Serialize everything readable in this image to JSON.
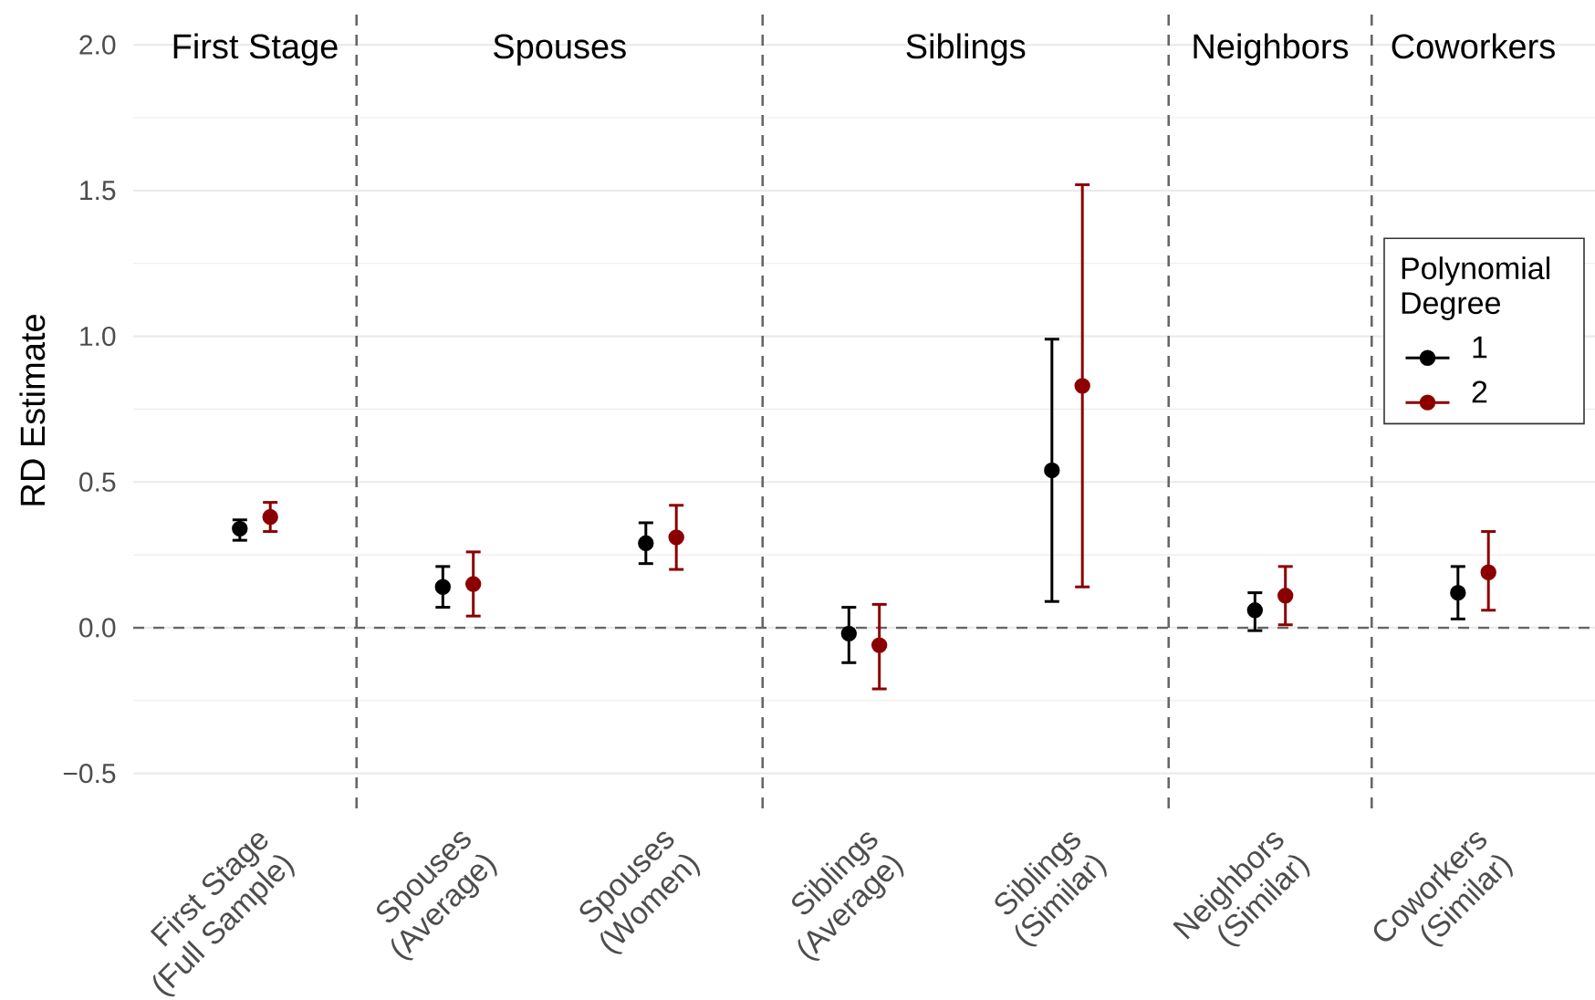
{
  "chart_data": {
    "type": "scatter",
    "categories": [
      "First Stage (Full Sample)",
      "Spouses (Average)",
      "Spouses (Women)",
      "Siblings (Average)",
      "Siblings (Similar)",
      "Neighbors (Similar)",
      "Coworkers (Similar)"
    ],
    "series": [
      {
        "name": "1",
        "color": "#000000",
        "values": [
          0.34,
          0.14,
          0.29,
          -0.02,
          0.54,
          0.06,
          0.12
        ],
        "errors": [
          [
            0.3,
            0.37
          ],
          [
            0.07,
            0.21
          ],
          [
            0.22,
            0.36
          ],
          [
            -0.12,
            0.07
          ],
          [
            0.09,
            0.99
          ],
          [
            -0.01,
            0.12
          ],
          [
            0.03,
            0.21
          ]
        ]
      },
      {
        "name": "2",
        "color": "#8b0000",
        "values": [
          0.38,
          0.15,
          0.31,
          -0.06,
          0.83,
          0.11,
          0.19
        ],
        "errors": [
          [
            0.33,
            0.43
          ],
          [
            0.04,
            0.26
          ],
          [
            0.2,
            0.42
          ],
          [
            -0.21,
            0.08
          ],
          [
            0.14,
            1.52
          ],
          [
            0.01,
            0.21
          ],
          [
            0.06,
            0.33
          ]
        ]
      }
    ],
    "ylabel": "RD Estimate",
    "ylim": [
      -0.62,
      2.11
    ],
    "yticks": [
      {
        "value": -0.5,
        "label": "−0.5"
      },
      {
        "value": 0,
        "label": "0.0"
      },
      0.5,
      {
        "value": 1,
        "label": "1.0"
      },
      1.5,
      {
        "value": 2,
        "label": "2.0"
      }
    ],
    "grid": "y",
    "legend": "right",
    "legend_title": "Polynomial Degree",
    "marker": "circle",
    "ref_lines": [
      {
        "axis": "y",
        "value": 0,
        "color": "#666666",
        "line_style": "dashed"
      }
    ],
    "annotations": [
      "First Stage",
      "Spouses",
      "Siblings",
      "Neighbors",
      "Coworkers"
    ]
  }
}
